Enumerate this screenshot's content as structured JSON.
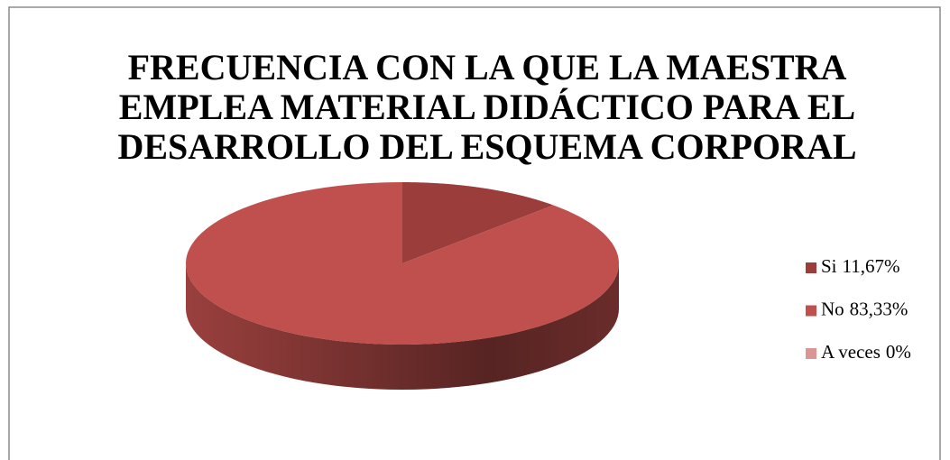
{
  "chart_data": {
    "type": "pie",
    "title": [
      "FRECUENCIA  CON LA QUE LA MAESTRA",
      "EMPLEA MATERIAL DIDÁCTICO PARA EL",
      "DESARROLLO DEL ESQUEMA CORPORAL"
    ],
    "categories": [
      "Si",
      "No",
      "A veces"
    ],
    "values": [
      11.67,
      83.33,
      0
    ],
    "value_labels": [
      "11,67%",
      "83,33%",
      "0%"
    ],
    "colors": [
      "#9b3d3b",
      "#c0504d",
      "#d99694"
    ],
    "legend": "right"
  }
}
